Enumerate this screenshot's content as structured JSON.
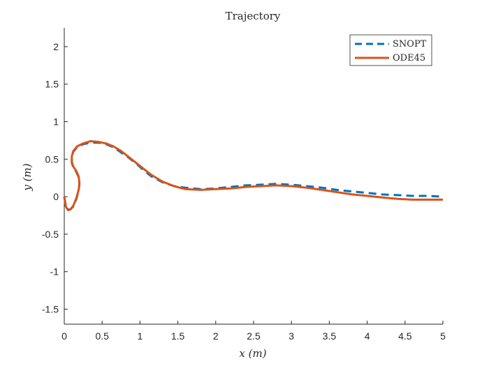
{
  "chart_data": {
    "type": "line",
    "title": "Trajectory",
    "xlabel": "x (m)",
    "ylabel": "y (m)",
    "xlim": [
      0,
      5
    ],
    "ylim": [
      -1.7,
      2.25
    ],
    "xticks": [
      0,
      0.5,
      1,
      1.5,
      2,
      2.5,
      3,
      3.5,
      4,
      4.5,
      5
    ],
    "yticks": [
      -1.5,
      -1,
      -0.5,
      0,
      0.5,
      1,
      1.5,
      2
    ],
    "xtick_labels": [
      "0",
      "0.5",
      "1",
      "1.5",
      "2",
      "2.5",
      "3",
      "3.5",
      "4",
      "4.5",
      "5"
    ],
    "ytick_labels": [
      "-1.5",
      "-1",
      "-0.5",
      "0",
      "0.5",
      "1",
      "1.5",
      "2"
    ],
    "grid": false,
    "legend_position": "top-right",
    "series": [
      {
        "name": "SNOPT",
        "color": "#0072BD",
        "style": "dashed",
        "x": [
          0,
          0.02,
          0.05,
          0.08,
          0.12,
          0.16,
          0.19,
          0.2,
          0.19,
          0.16,
          0.12,
          0.1,
          0.1,
          0.12,
          0.17,
          0.25,
          0.35,
          0.45,
          0.55,
          0.65,
          0.75,
          0.85,
          0.95,
          1.05,
          1.15,
          1.3,
          1.45,
          1.6,
          1.8,
          2,
          2.2,
          2.4,
          2.6,
          2.8,
          3,
          3.2,
          3.4,
          3.6,
          3.8,
          4,
          4.2,
          4.4,
          4.6,
          4.8,
          5
        ],
        "y": [
          0,
          -0.12,
          -0.17,
          -0.17,
          -0.13,
          -0.03,
          0.08,
          0.17,
          0.26,
          0.33,
          0.39,
          0.45,
          0.53,
          0.6,
          0.66,
          0.7,
          0.72,
          0.72,
          0.7,
          0.66,
          0.59,
          0.52,
          0.44,
          0.35,
          0.27,
          0.19,
          0.14,
          0.12,
          0.1,
          0.11,
          0.13,
          0.15,
          0.16,
          0.17,
          0.16,
          0.14,
          0.12,
          0.09,
          0.07,
          0.05,
          0.03,
          0.02,
          0.01,
          0.01,
          0
        ]
      },
      {
        "name": "ODE45",
        "color": "#D95319",
        "style": "solid",
        "x": [
          0,
          0.02,
          0.05,
          0.08,
          0.12,
          0.16,
          0.19,
          0.2,
          0.19,
          0.16,
          0.12,
          0.1,
          0.1,
          0.12,
          0.17,
          0.25,
          0.35,
          0.45,
          0.55,
          0.65,
          0.75,
          0.85,
          0.95,
          1.05,
          1.15,
          1.3,
          1.45,
          1.6,
          1.8,
          2,
          2.2,
          2.4,
          2.6,
          2.8,
          3,
          3.2,
          3.4,
          3.6,
          3.8,
          4,
          4.2,
          4.4,
          4.6,
          4.8,
          5
        ],
        "y": [
          0,
          -0.13,
          -0.18,
          -0.17,
          -0.12,
          -0.02,
          0.09,
          0.18,
          0.27,
          0.34,
          0.4,
          0.46,
          0.54,
          0.61,
          0.67,
          0.71,
          0.74,
          0.73,
          0.71,
          0.67,
          0.61,
          0.53,
          0.45,
          0.37,
          0.29,
          0.2,
          0.14,
          0.1,
          0.09,
          0.1,
          0.11,
          0.13,
          0.14,
          0.15,
          0.14,
          0.12,
          0.09,
          0.06,
          0.03,
          0.01,
          -0.01,
          -0.03,
          -0.04,
          -0.04,
          -0.04
        ]
      }
    ]
  }
}
